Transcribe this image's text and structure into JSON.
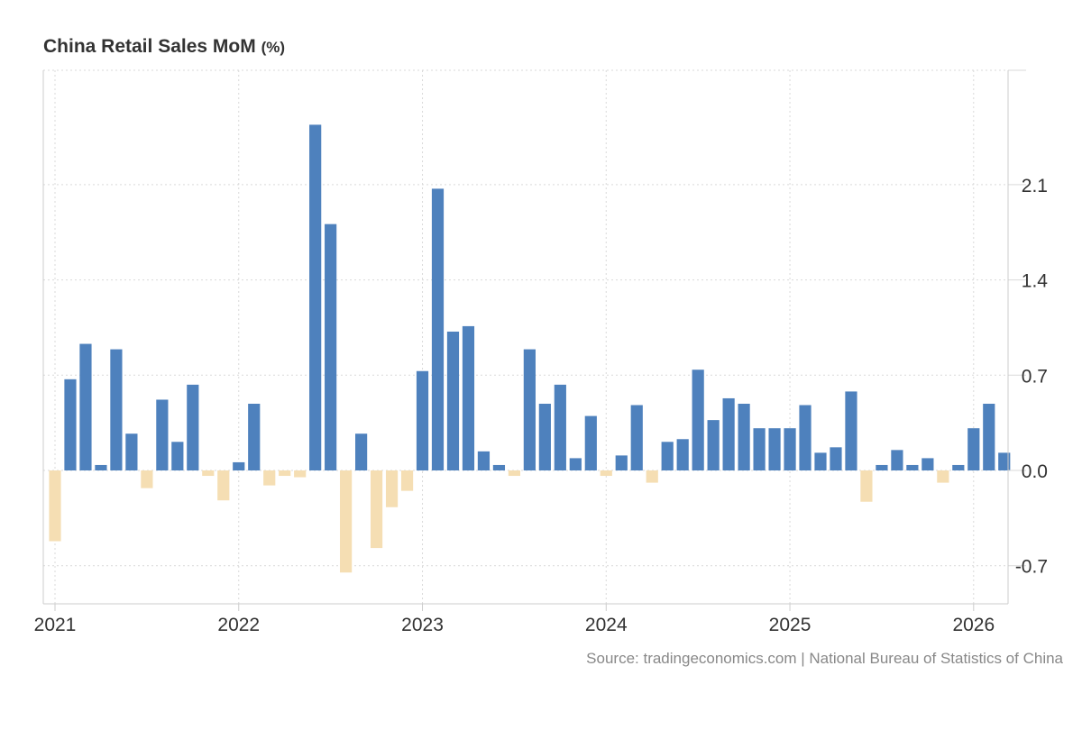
{
  "chart_data": {
    "type": "bar",
    "title": "China Retail Sales MoM",
    "unit": "(%)",
    "source": "Source: tradingeconomics.com | National Bureau of Statistics of China",
    "xlabel": "",
    "ylabel": "",
    "ylim": [
      -0.98,
      2.94
    ],
    "y_ticks": [
      -0.7,
      0.0,
      0.7,
      1.4,
      2.1
    ],
    "y_tick_labels": [
      "-0.7",
      "0.0",
      "0.7",
      "1.4",
      "2.1"
    ],
    "x_ticks": [
      "2021",
      "2022",
      "2023",
      "2024",
      "2025",
      "2026"
    ],
    "start": "2021-01",
    "grid": true,
    "colors": {
      "positive": "#4e81bd",
      "negative": "#f5deb3",
      "grid": "#d9d9d9",
      "axis": "#cccccc",
      "tick_text": "#333333"
    },
    "series": [
      {
        "name": "Retail Sales MoM",
        "values": [
          -0.52,
          0.67,
          0.93,
          0.04,
          0.89,
          0.27,
          -0.13,
          0.52,
          0.21,
          0.63,
          -0.04,
          -0.22,
          0.06,
          0.49,
          -0.11,
          -0.04,
          -0.05,
          2.54,
          1.81,
          -0.75,
          0.27,
          -0.57,
          -0.27,
          -0.15,
          0.73,
          2.07,
          1.02,
          1.06,
          0.14,
          0.04,
          -0.04,
          0.89,
          0.49,
          0.63,
          0.09,
          0.4,
          -0.04,
          0.11,
          0.48,
          -0.09,
          0.21,
          0.23,
          0.74,
          0.37,
          0.53,
          0.49,
          0.31,
          0.31,
          0.31,
          0.48,
          0.13,
          0.17,
          0.58,
          -0.23,
          0.04,
          0.15,
          0.04,
          0.09,
          -0.09,
          0.04,
          0.31,
          0.49,
          0.13
        ]
      }
    ]
  }
}
